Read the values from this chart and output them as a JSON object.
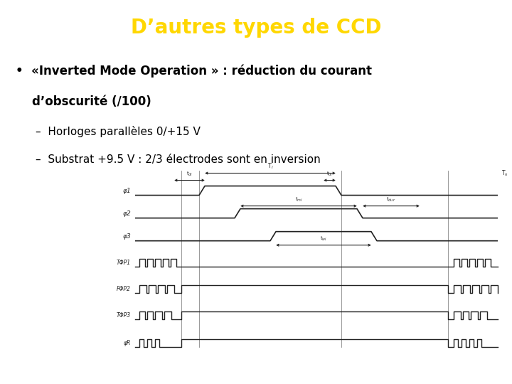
{
  "title": "D’autres types de CCD",
  "title_color": "#FFD700",
  "title_bg": "#000000",
  "bg_color": "#ffffff",
  "bullet1": "•  «Inverted Mode Operation » : réduction du courant",
  "bullet1b": "    d’obscurité (/100)",
  "sub1": "–  Horloges parallèles 0/+15 V",
  "sub2": "–  Substrat +9.5 V : 2/3 électrodes sont en inversion",
  "line_color": "#222222",
  "figsize": [
    7.2,
    5.4
  ],
  "dpi": 100
}
